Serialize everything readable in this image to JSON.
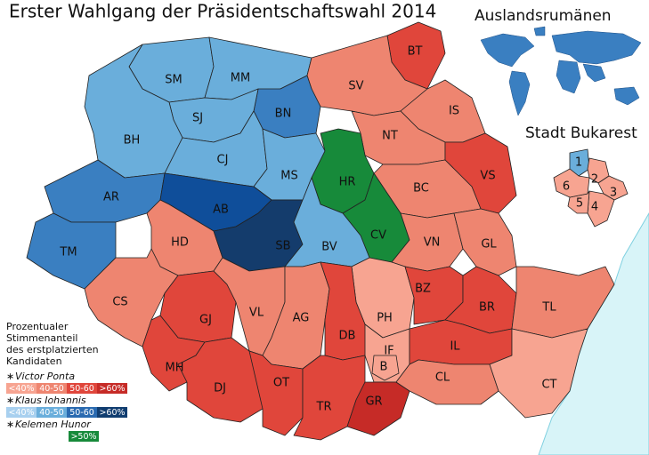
{
  "title": "Erster Wahlgang der Präsidentschaftswahl 2014",
  "world_inset": {
    "label": "Auslandsrumänen",
    "color": "#3a7fc1"
  },
  "bucharest_inset": {
    "label": "Stadt Bukarest",
    "sectors": [
      {
        "label": "1",
        "color": "#6aaedb"
      },
      {
        "label": "2",
        "color": "#f7a491"
      },
      {
        "label": "3",
        "color": "#f7a491"
      },
      {
        "label": "4",
        "color": "#f7a491"
      },
      {
        "label": "5",
        "color": "#f7a491"
      },
      {
        "label": "6",
        "color": "#f7a491"
      }
    ]
  },
  "counties": [
    {
      "label": "SM",
      "color": "#6aaedb"
    },
    {
      "label": "MM",
      "color": "#6aaedb"
    },
    {
      "label": "BT",
      "color": "#e0463b"
    },
    {
      "label": "SV",
      "color": "#ee8570"
    },
    {
      "label": "BN",
      "color": "#3a7fc1"
    },
    {
      "label": "IS",
      "color": "#ee8570"
    },
    {
      "label": "SJ",
      "color": "#6aaedb"
    },
    {
      "label": "BH",
      "color": "#6aaedb"
    },
    {
      "label": "NT",
      "color": "#ee8570"
    },
    {
      "label": "CJ",
      "color": "#6aaedb"
    },
    {
      "label": "MS",
      "color": "#6aaedb"
    },
    {
      "label": "HR",
      "color": "#178a3a"
    },
    {
      "label": "VS",
      "color": "#e0463b"
    },
    {
      "label": "BC",
      "color": "#ee8570"
    },
    {
      "label": "AR",
      "color": "#3a7fc1"
    },
    {
      "label": "AB",
      "color": "#0f4e9a"
    },
    {
      "label": "CV",
      "color": "#178a3a"
    },
    {
      "label": "HD",
      "color": "#ee8570"
    },
    {
      "label": "SB",
      "color": "#143c6c"
    },
    {
      "label": "BV",
      "color": "#6aaedb"
    },
    {
      "label": "VN",
      "color": "#ee8570"
    },
    {
      "label": "GL",
      "color": "#ee8570"
    },
    {
      "label": "TM",
      "color": "#3a7fc1"
    },
    {
      "label": "CS",
      "color": "#ee8570"
    },
    {
      "label": "GJ",
      "color": "#e0463b"
    },
    {
      "label": "VL",
      "color": "#ee8570"
    },
    {
      "label": "AG",
      "color": "#ee8570"
    },
    {
      "label": "PH",
      "color": "#f7a491"
    },
    {
      "label": "BZ",
      "color": "#e0463b"
    },
    {
      "label": "BR",
      "color": "#e0463b"
    },
    {
      "label": "TL",
      "color": "#ee8570"
    },
    {
      "label": "MH",
      "color": "#e0463b"
    },
    {
      "label": "DB",
      "color": "#e0463b"
    },
    {
      "label": "IF",
      "color": "#f7a491"
    },
    {
      "label": "IL",
      "color": "#e0463b"
    },
    {
      "label": "DJ",
      "color": "#e0463b"
    },
    {
      "label": "OT",
      "color": "#e0463b"
    },
    {
      "label": "TR",
      "color": "#e0463b"
    },
    {
      "label": "GR",
      "color": "#c62b27"
    },
    {
      "label": "CL",
      "color": "#ee8570"
    },
    {
      "label": "CT",
      "color": "#f7a491"
    },
    {
      "label": "B",
      "color": "#f7a491"
    }
  ],
  "legend": {
    "title": [
      "Prozentualer",
      "Stimmenanteil",
      "des erstplatzierten",
      "Kandidaten"
    ],
    "candidates": [
      {
        "name": "Victor Ponta",
        "bins": [
          {
            "label": "<40%",
            "color": "#f7a491"
          },
          {
            "label": "40-50",
            "color": "#ee8570"
          },
          {
            "label": "50-60",
            "color": "#e0463b"
          },
          {
            "label": ">60%",
            "color": "#c62b27"
          }
        ]
      },
      {
        "name": "Klaus Iohannis",
        "bins": [
          {
            "label": "<40%",
            "color": "#a8d0ef"
          },
          {
            "label": "40-50",
            "color": "#6aaedb"
          },
          {
            "label": "50-60",
            "color": "#2a6ab0"
          },
          {
            "label": ">60%",
            "color": "#103d70"
          }
        ]
      },
      {
        "name": "Kelemen Hunor",
        "bins": [
          {
            "label": ">50%",
            "color": "#178a3a"
          }
        ]
      }
    ]
  }
}
